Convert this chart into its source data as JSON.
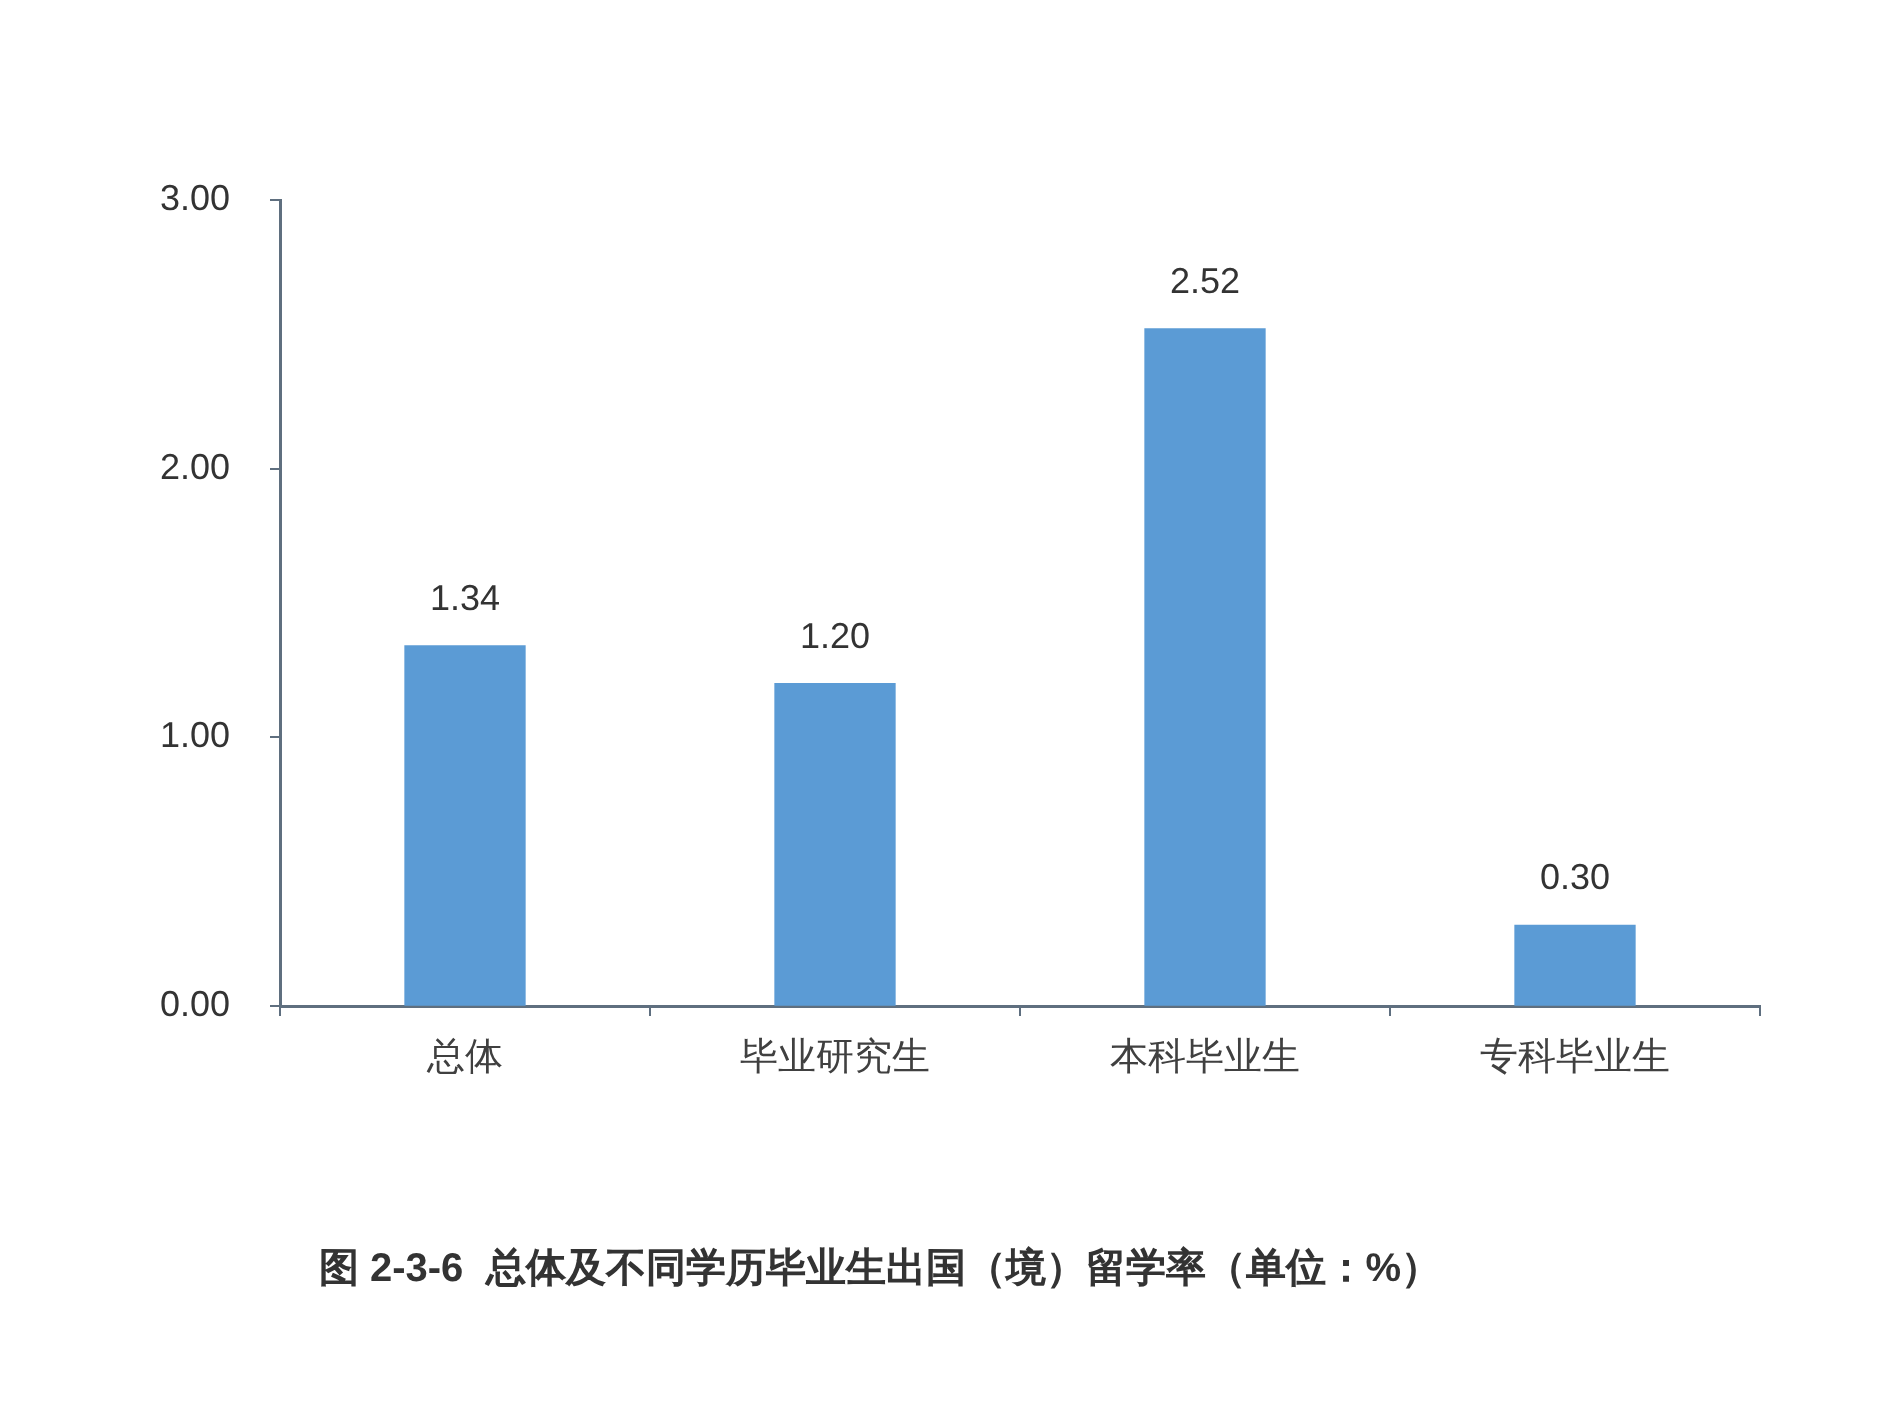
{
  "chart_data": {
    "type": "bar",
    "title": "图 2-3-6  总体及不同学历毕业生出国（境）留学率（单位：%）",
    "categories": [
      "总体",
      "毕业研究生",
      "本科毕业生",
      "专科毕业生"
    ],
    "values": [
      1.34,
      1.2,
      2.52,
      0.3
    ],
    "value_labels": [
      "1.34",
      "1.20",
      "2.52",
      "0.30"
    ],
    "color": "#5b9bd5",
    "ylim": [
      0,
      3
    ],
    "yticks": [
      {
        "value": 0,
        "label": "0.00"
      },
      {
        "value": 1,
        "label": "1.00"
      },
      {
        "value": 2,
        "label": "2.00"
      },
      {
        "value": 3,
        "label": "3.00"
      }
    ]
  }
}
